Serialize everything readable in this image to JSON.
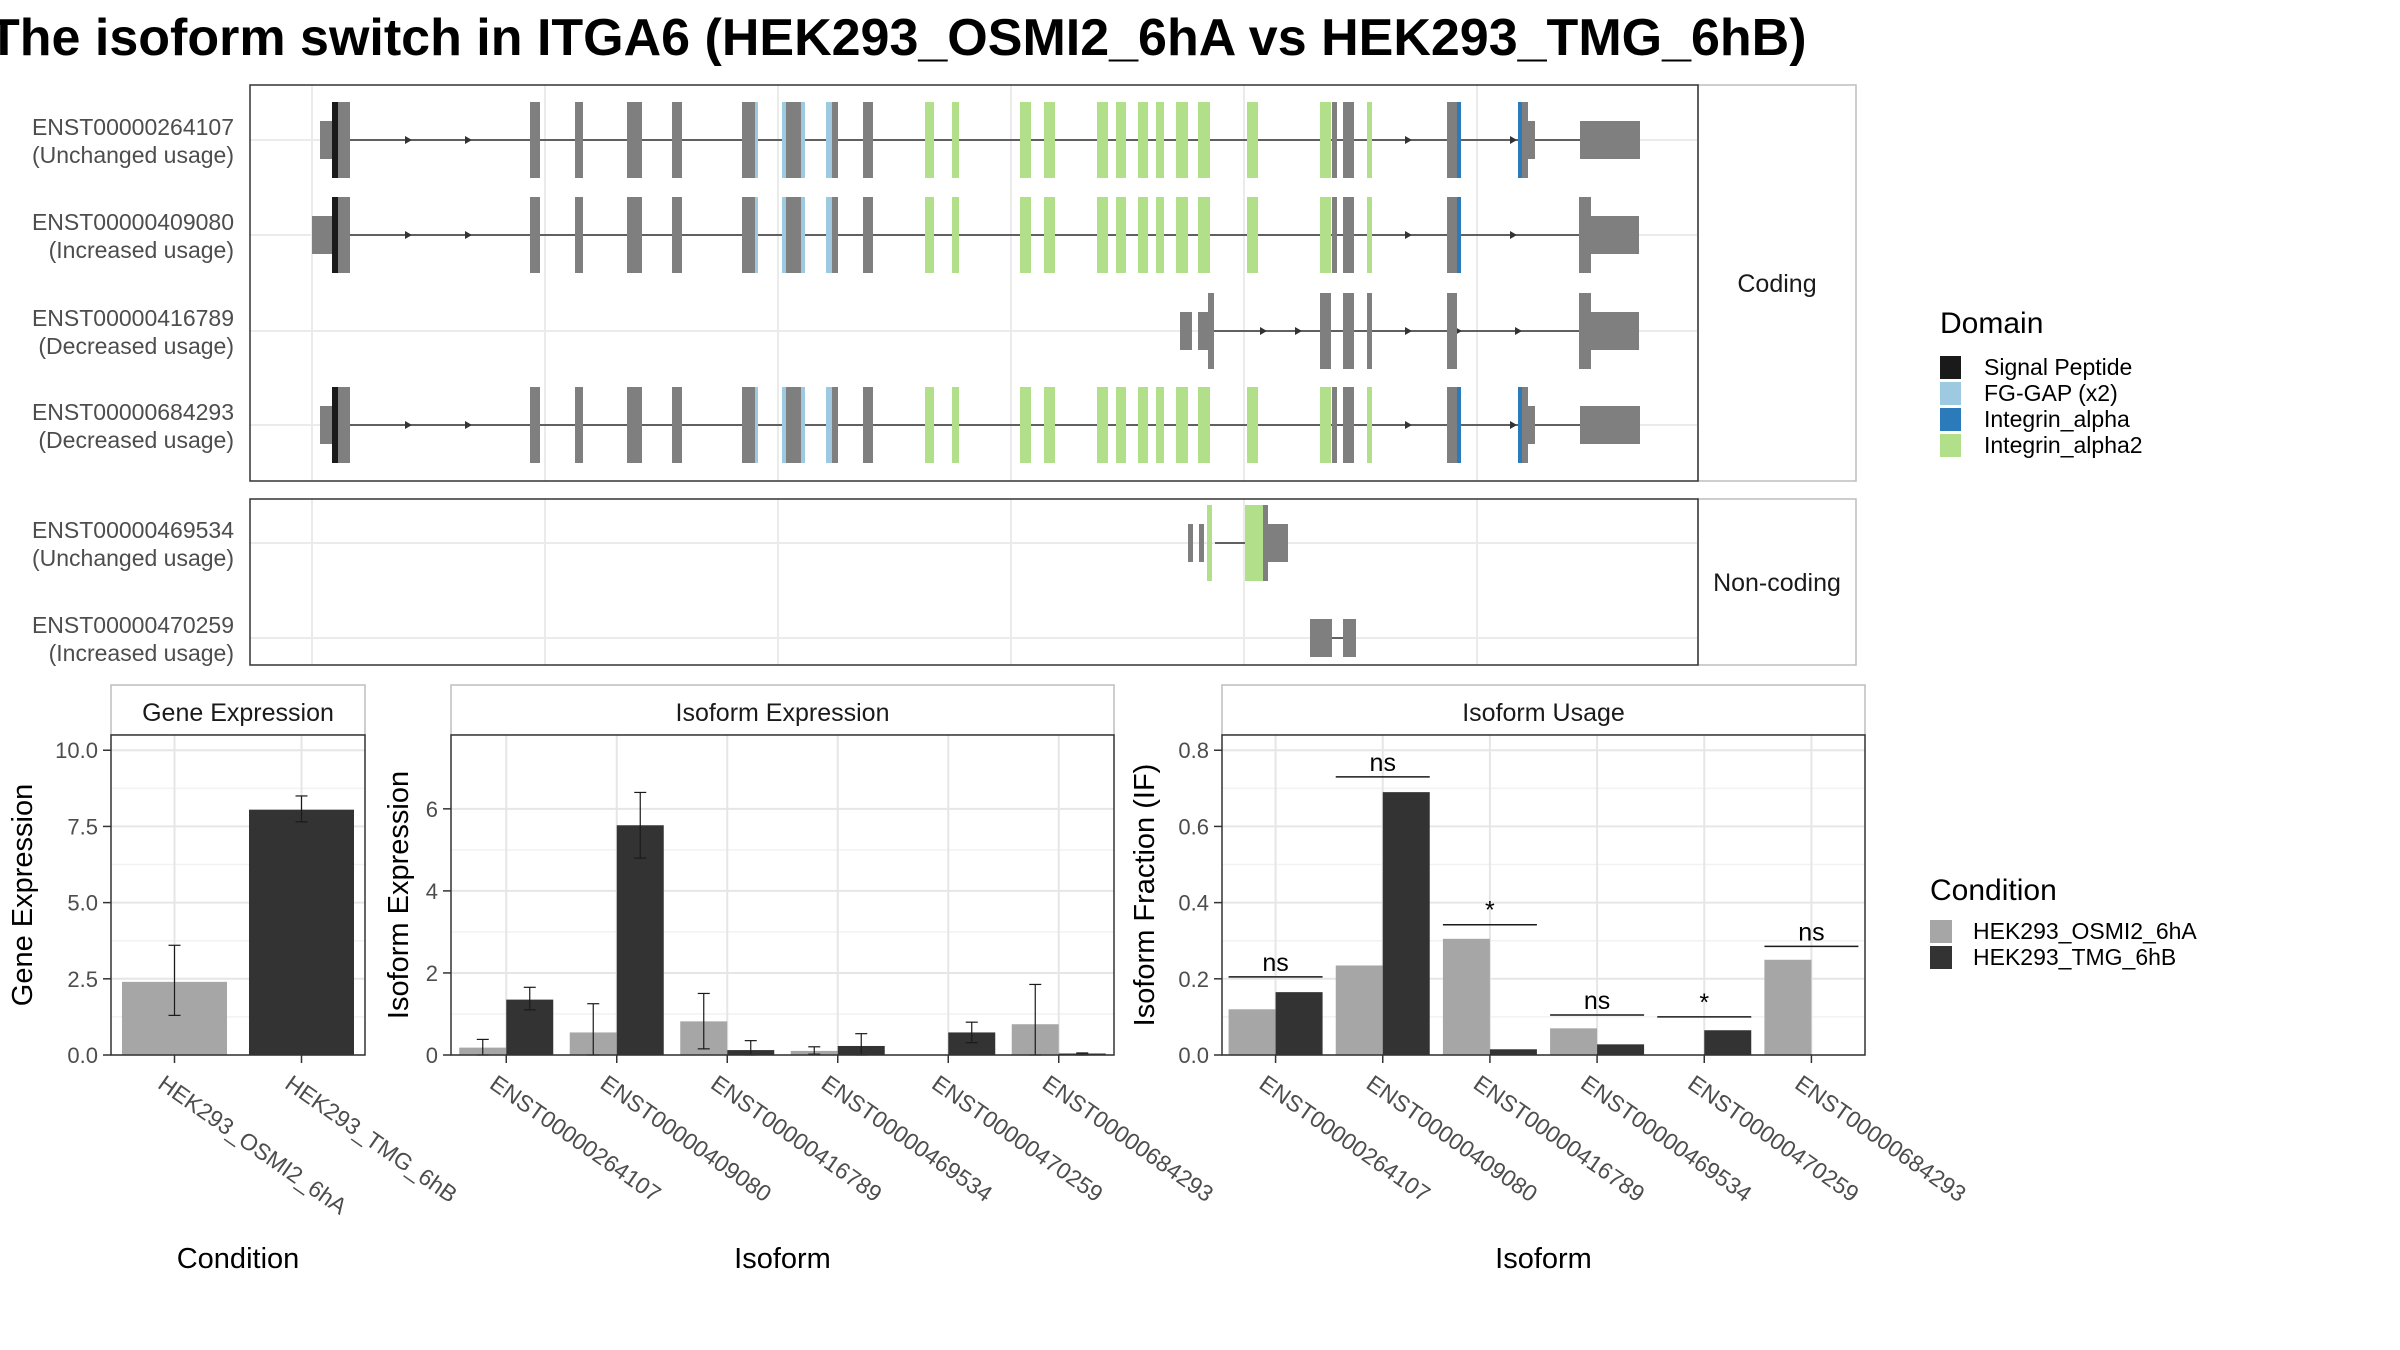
{
  "title": "The isoform switch in ITGA6 (HEK293_OSMI2_6hA vs HEK293_TMG_6hB)",
  "colors": {
    "condition_a": "#a6a6a6",
    "condition_b": "#333333",
    "exon": "#7f7f7f",
    "signal_peptide": "#1a1a1a",
    "fg_gap": "#9ecae1",
    "integrin_alpha": "#2b7bba",
    "integrin_alpha2": "#b2df8a"
  },
  "structure": {
    "coding_label": "Coding",
    "noncoding_label": "Non-coding",
    "coding": [
      {
        "id": "ENST00000264107",
        "status": "(Unchanged usage)"
      },
      {
        "id": "ENST00000409080",
        "status": "(Increased usage)"
      },
      {
        "id": "ENST00000416789",
        "status": "(Decreased usage)"
      },
      {
        "id": "ENST00000684293",
        "status": "(Decreased usage)"
      }
    ],
    "noncoding": [
      {
        "id": "ENST00000469534",
        "status": "(Unchanged usage)"
      },
      {
        "id": "ENST00000470259",
        "status": "(Increased usage)"
      }
    ]
  },
  "domain_legend": {
    "title": "Domain",
    "items": [
      {
        "label": "Signal Peptide",
        "color": "#1a1a1a"
      },
      {
        "label": "FG-GAP (x2)",
        "color": "#9ecae1"
      },
      {
        "label": "Integrin_alpha",
        "color": "#2b7bba"
      },
      {
        "label": "Integrin_alpha2",
        "color": "#b2df8a"
      }
    ]
  },
  "condition_legend": {
    "title": "Condition",
    "items": [
      {
        "label": "HEK293_OSMI2_6hA",
        "color": "#a6a6a6"
      },
      {
        "label": "HEK293_TMG_6hB",
        "color": "#333333"
      }
    ]
  },
  "chart_data": [
    {
      "type": "bar",
      "title": "Gene Expression",
      "xlabel": "Condition",
      "ylabel": "Gene Expression",
      "ylim": [
        0,
        10.5
      ],
      "yticks": [
        0,
        2.5,
        5,
        7.5,
        10
      ],
      "ytick_labels": [
        "0.0",
        "2.5",
        "5.0",
        "7.5",
        "10.0"
      ],
      "categories": [
        "HEK293_OSMI2_6hA",
        "HEK293_TMG_6hB"
      ],
      "values": [
        2.4,
        8.05
      ],
      "errors": [
        [
          1.3,
          3.6
        ],
        [
          7.65,
          8.5
        ]
      ]
    },
    {
      "type": "bar",
      "title": "Isoform Expression",
      "xlabel": "Isoform",
      "ylabel": "Isoform Expression",
      "ylim": [
        0,
        7.8
      ],
      "yticks": [
        0,
        2,
        4,
        6
      ],
      "ytick_labels": [
        "0",
        "2",
        "4",
        "6"
      ],
      "categories": [
        "ENST00000264107",
        "ENST00000409080",
        "ENST00000416789",
        "ENST00000469534",
        "ENST00000470259",
        "ENST00000684293"
      ],
      "series": [
        {
          "name": "HEK293_OSMI2_6hA",
          "values": [
            0.18,
            0.55,
            0.82,
            0.1,
            0.0,
            0.75
          ],
          "errors": [
            [
              0.0,
              0.38
            ],
            [
              0.0,
              1.25
            ],
            [
              0.15,
              1.5
            ],
            [
              0.02,
              0.2
            ],
            [
              0.0,
              0.0
            ],
            [
              0.0,
              1.72
            ]
          ]
        },
        {
          "name": "HEK293_TMG_6hB",
          "values": [
            1.35,
            5.6,
            0.12,
            0.22,
            0.55,
            0.03
          ],
          "errors": [
            [
              1.1,
              1.65
            ],
            [
              4.8,
              6.4
            ],
            [
              0.0,
              0.35
            ],
            [
              0.0,
              0.52
            ],
            [
              0.3,
              0.8
            ],
            [
              0.0,
              0.05
            ]
          ]
        }
      ]
    },
    {
      "type": "bar",
      "title": "Isoform Usage",
      "xlabel": "Isoform",
      "ylabel": "Isoform Fraction (IF)",
      "ylim": [
        0,
        0.84
      ],
      "yticks": [
        0,
        0.2,
        0.4,
        0.6,
        0.8
      ],
      "ytick_labels": [
        "0.0",
        "0.2",
        "0.4",
        "0.6",
        "0.8"
      ],
      "categories": [
        "ENST00000264107",
        "ENST00000409080",
        "ENST00000416789",
        "ENST00000469534",
        "ENST00000470259",
        "ENST00000684293"
      ],
      "series": [
        {
          "name": "HEK293_OSMI2_6hA",
          "values": [
            0.12,
            0.235,
            0.305,
            0.07,
            0.0,
            0.25
          ]
        },
        {
          "name": "HEK293_TMG_6hB",
          "values": [
            0.165,
            0.69,
            0.015,
            0.028,
            0.065,
            0.0
          ]
        }
      ],
      "significance": [
        {
          "label": "ns",
          "y": 0.205
        },
        {
          "label": "ns",
          "y": 0.73
        },
        {
          "label": "*",
          "y": 0.342
        },
        {
          "label": "ns",
          "y": 0.105
        },
        {
          "label": "*",
          "y": 0.1
        },
        {
          "label": "ns",
          "y": 0.285
        }
      ]
    }
  ]
}
